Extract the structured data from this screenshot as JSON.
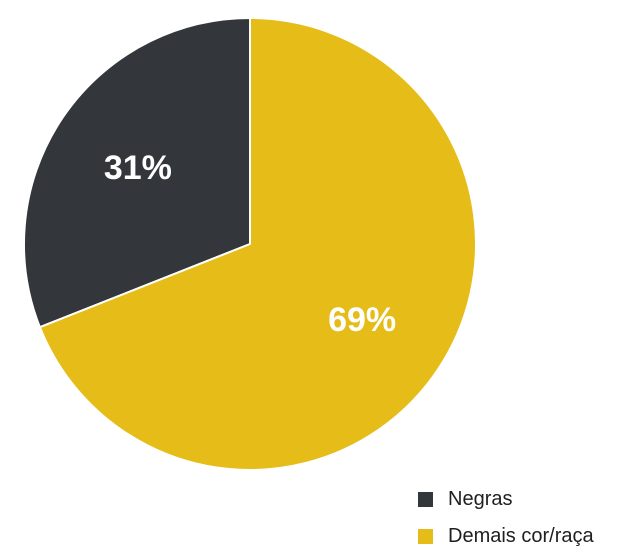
{
  "chart_data": {
    "type": "pie",
    "title": "",
    "slices": [
      {
        "name": "Negras",
        "value": 31,
        "label": "31%",
        "color": "#33363a"
      },
      {
        "name": "Demais cor/raça",
        "value": 69,
        "label": "69%",
        "color": "#e6bd18"
      }
    ],
    "start_angle_deg": 0,
    "direction": "counterclockwise",
    "legend_position": "bottom-right"
  },
  "legend": {
    "items": [
      {
        "label": "Negras",
        "color": "#33363a"
      },
      {
        "label": "Demais cor/raça",
        "color": "#e6bd18"
      }
    ]
  }
}
